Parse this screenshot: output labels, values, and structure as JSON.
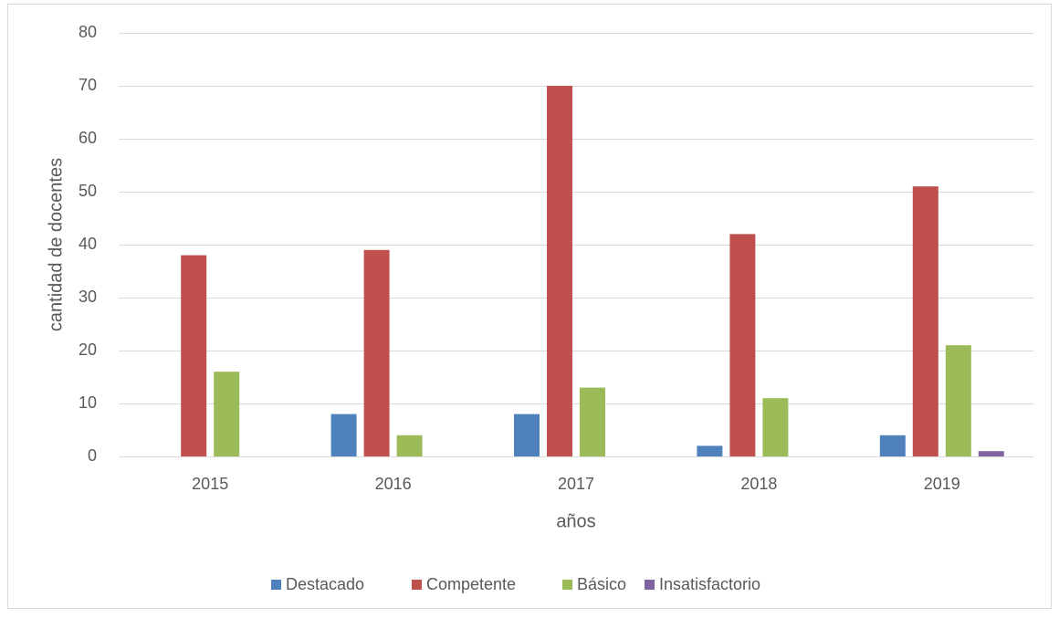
{
  "chart_data": {
    "type": "bar",
    "categories": [
      "2015",
      "2016",
      "2017",
      "2018",
      "2019"
    ],
    "series": [
      {
        "name": "Destacado",
        "color": "#4f81bd",
        "values": [
          0,
          8,
          8,
          2,
          4
        ]
      },
      {
        "name": "Competente",
        "color": "#c0504d",
        "values": [
          38,
          39,
          70,
          42,
          51
        ]
      },
      {
        "name": "Básico",
        "color": "#9bbb59",
        "values": [
          16,
          4,
          13,
          11,
          21
        ]
      },
      {
        "name": "Insatisfactorio",
        "color": "#8064a2",
        "values": [
          0,
          0,
          0,
          0,
          1
        ]
      }
    ],
    "xlabel": "años",
    "ylabel": "cantidad de docentes",
    "ylim": [
      0,
      80
    ],
    "yticks": [
      0,
      10,
      20,
      30,
      40,
      50,
      60,
      70,
      80
    ],
    "grid": true,
    "legend": "bottom"
  }
}
